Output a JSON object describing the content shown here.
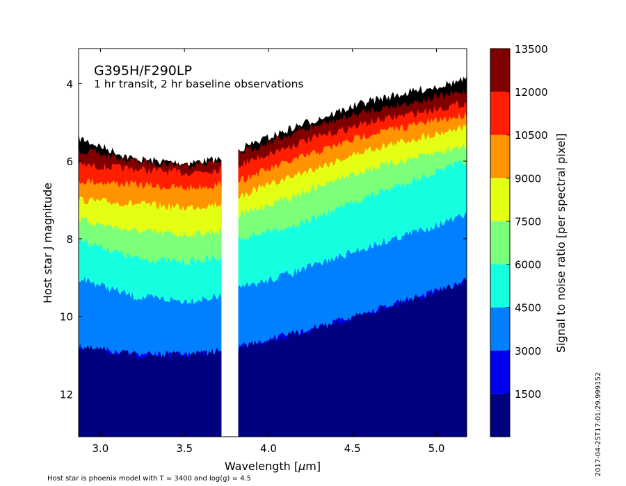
{
  "chart_data": {
    "type": "heatmap",
    "plot_type": "filled contour",
    "title": "G395H/F290LP",
    "subtitle": "1 hr transit, 2 hr baseline observations",
    "xlabel": "Wavelength [$\\mu$m]",
    "xlabel_parts": {
      "before": "Wavelength [",
      "mu": "μ",
      "after": "m]"
    },
    "ylabel": "Host star J magnitude",
    "xlim": [
      2.87,
      5.18
    ],
    "ylim": [
      13.1,
      3.1
    ],
    "y_inverted": true,
    "x_ticks": [
      {
        "value": 3.0,
        "label": "3.0"
      },
      {
        "value": 3.5,
        "label": "3.5"
      },
      {
        "value": 4.0,
        "label": "4.0"
      },
      {
        "value": 4.5,
        "label": "4.5"
      },
      {
        "value": 5.0,
        "label": "5.0"
      }
    ],
    "y_ticks": [
      {
        "value": 4,
        "label": "4"
      },
      {
        "value": 6,
        "label": "6"
      },
      {
        "value": 8,
        "label": "8"
      },
      {
        "value": 10,
        "label": "10"
      },
      {
        "value": 12,
        "label": "12"
      }
    ],
    "gap_wavelength": [
      3.72,
      3.82
    ],
    "colorbar": {
      "label": "Signal to noise ratio [per spectral pixel]",
      "min": 0,
      "max": 13500,
      "levels": [
        0,
        1500,
        3000,
        4500,
        6000,
        7500,
        9000,
        10500,
        12000,
        13500
      ],
      "tick_labels": [
        "1500",
        "3000",
        "4500",
        "6000",
        "7500",
        "9000",
        "10500",
        "12000",
        "13500"
      ],
      "colors": [
        "#000080",
        "#0000f1",
        "#0080ff",
        "#15ffe1",
        "#7cff79",
        "#e4ff13",
        "#ff9400",
        "#ff1e00",
        "#800000"
      ]
    },
    "boundaries_note_free": true,
    "boundaries": [
      {
        "snr": 1500,
        "left": [
          [
            2.87,
            10.8
          ],
          [
            3.2,
            11.0
          ],
          [
            3.5,
            11.0
          ],
          [
            3.72,
            10.9
          ]
        ],
        "right": [
          [
            3.82,
            10.8
          ],
          [
            4.2,
            10.4
          ],
          [
            4.6,
            9.9
          ],
          [
            5.18,
            9.1
          ]
        ]
      },
      {
        "snr": 3000,
        "left": [
          [
            2.87,
            9.0
          ],
          [
            3.2,
            9.5
          ],
          [
            3.5,
            9.6
          ],
          [
            3.72,
            9.5
          ]
        ],
        "right": [
          [
            3.82,
            9.3
          ],
          [
            4.2,
            8.8
          ],
          [
            4.6,
            8.2
          ],
          [
            5.18,
            7.4
          ]
        ]
      },
      {
        "snr": 4500,
        "left": [
          [
            2.87,
            8.0
          ],
          [
            3.2,
            8.5
          ],
          [
            3.5,
            8.6
          ],
          [
            3.72,
            8.5
          ]
        ],
        "right": [
          [
            3.82,
            8.0
          ],
          [
            4.2,
            7.6
          ],
          [
            4.6,
            6.9
          ],
          [
            5.18,
            6.0
          ]
        ]
      },
      {
        "snr": 6000,
        "left": [
          [
            2.87,
            7.5
          ],
          [
            3.2,
            7.8
          ],
          [
            3.5,
            7.9
          ],
          [
            3.72,
            7.8
          ]
        ],
        "right": [
          [
            3.82,
            7.4
          ],
          [
            4.2,
            6.8
          ],
          [
            4.6,
            6.2
          ],
          [
            5.18,
            5.6
          ]
        ]
      },
      {
        "snr": 7500,
        "left": [
          [
            2.87,
            7.0
          ],
          [
            3.2,
            7.1
          ],
          [
            3.5,
            7.2
          ],
          [
            3.72,
            7.1
          ]
        ],
        "right": [
          [
            3.82,
            6.9
          ],
          [
            4.2,
            6.3
          ],
          [
            4.6,
            5.7
          ],
          [
            5.18,
            5.1
          ]
        ]
      },
      {
        "snr": 9000,
        "left": [
          [
            2.87,
            6.5
          ],
          [
            3.2,
            6.6
          ],
          [
            3.5,
            6.7
          ],
          [
            3.72,
            6.6
          ]
        ],
        "right": [
          [
            3.82,
            6.5
          ],
          [
            4.2,
            5.9
          ],
          [
            4.6,
            5.3
          ],
          [
            5.18,
            4.8
          ]
        ]
      },
      {
        "snr": 10500,
        "left": [
          [
            2.87,
            6.1
          ],
          [
            3.2,
            6.2
          ],
          [
            3.5,
            6.3
          ],
          [
            3.72,
            6.2
          ]
        ],
        "right": [
          [
            3.82,
            6.1
          ],
          [
            4.2,
            5.5
          ],
          [
            4.6,
            5.0
          ],
          [
            5.18,
            4.5
          ]
        ]
      },
      {
        "snr": 12000,
        "left": [
          [
            2.87,
            5.7
          ],
          [
            3.2,
            6.0
          ],
          [
            3.5,
            6.1
          ],
          [
            3.72,
            6.0
          ]
        ],
        "right": [
          [
            3.82,
            5.8
          ],
          [
            4.2,
            5.2
          ],
          [
            4.6,
            4.7
          ],
          [
            5.18,
            4.2
          ]
        ]
      },
      {
        "snr": 13500,
        "left": [
          [
            2.87,
            5.4
          ],
          [
            3.2,
            5.95
          ],
          [
            3.5,
            6.05
          ],
          [
            3.72,
            5.95
          ]
        ],
        "right": [
          [
            3.82,
            5.7
          ],
          [
            4.2,
            5.05
          ],
          [
            4.6,
            4.45
          ],
          [
            5.18,
            3.9
          ]
        ]
      }
    ],
    "grid": false,
    "legend": "colorbar-right"
  },
  "footnote": "Host star is phoenix model with T = 3400 and log(g) = 4.5",
  "timestamp": "2017-04-25T17:01:29.999152"
}
